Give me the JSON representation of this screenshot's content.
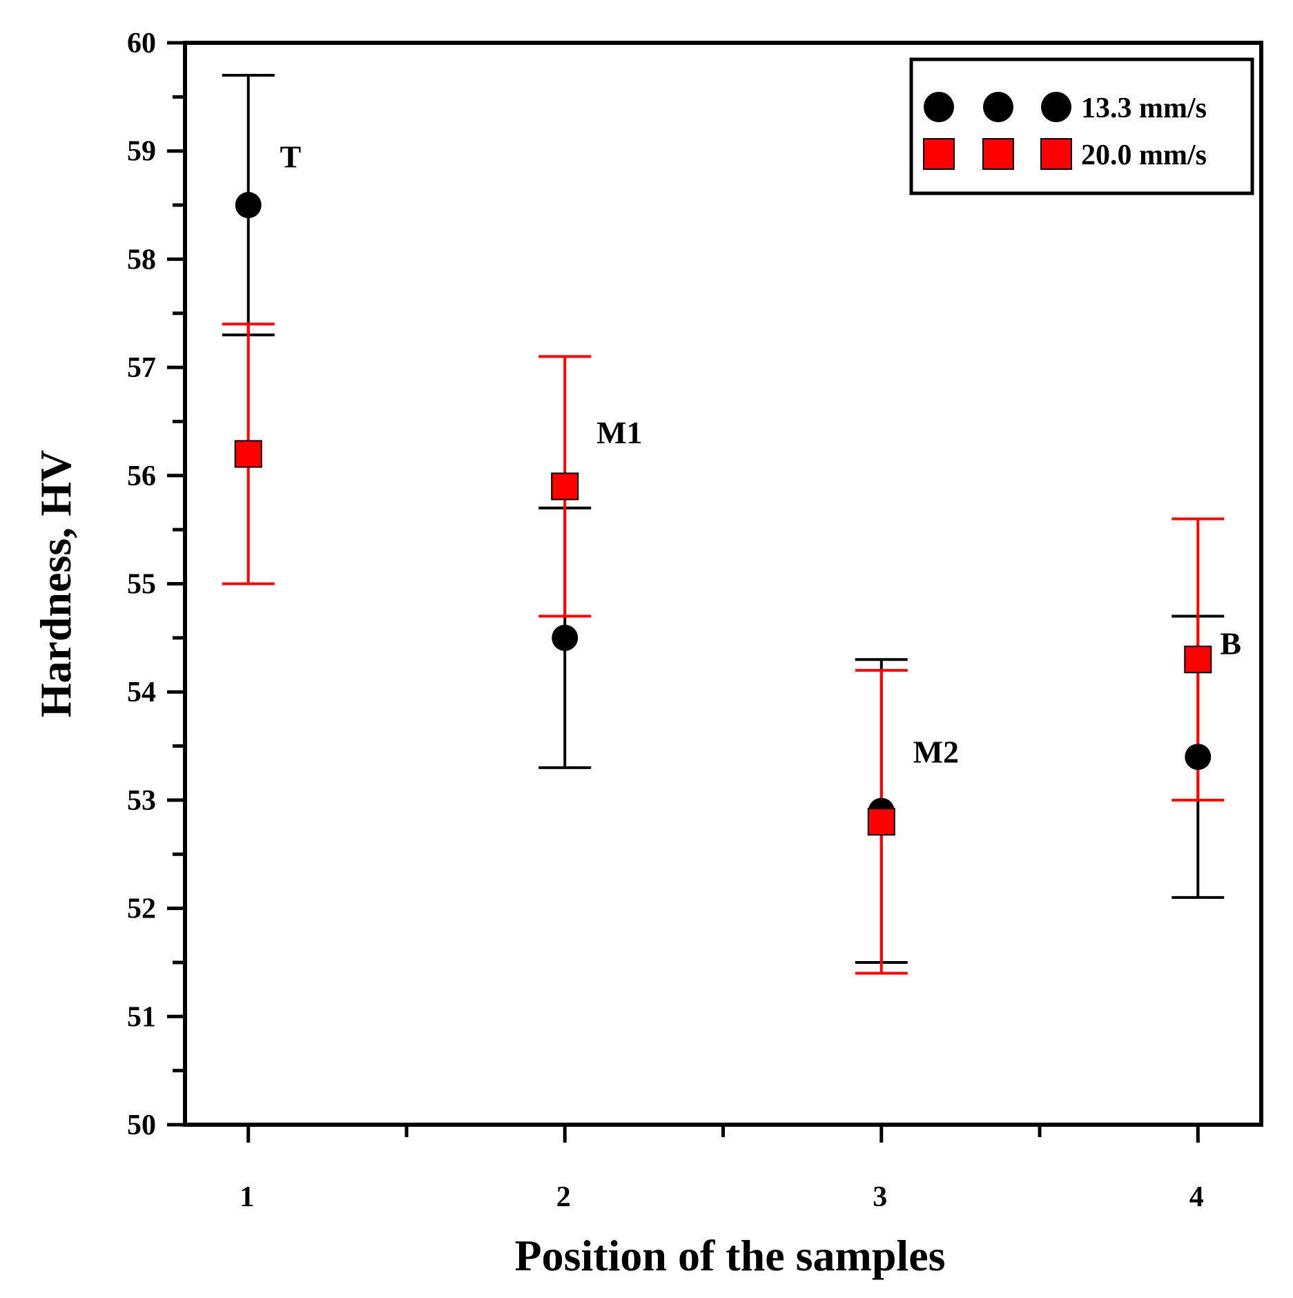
{
  "chart_data": {
    "type": "scatter",
    "title": "",
    "xlabel": "Position of the samples",
    "ylabel": "Hardness, HV",
    "xlim": [
      0.8,
      4.2
    ],
    "ylim": [
      50,
      60
    ],
    "x_ticks": [
      1,
      2,
      3,
      4
    ],
    "x_minor_ticks": [
      1.5,
      2.5,
      3.5
    ],
    "y_ticks": [
      50,
      51,
      52,
      53,
      54,
      55,
      56,
      57,
      58,
      59,
      60
    ],
    "y_minor_step": 0.5,
    "grid": false,
    "legend_position": "top-right",
    "series": [
      {
        "name": "13.3 mm/s",
        "marker": "circle",
        "color": "#000000",
        "x": [
          1,
          2,
          3,
          4
        ],
        "y": [
          58.5,
          54.5,
          52.9,
          53.4
        ],
        "err_low": [
          57.3,
          53.3,
          51.5,
          52.1
        ],
        "err_high": [
          59.7,
          55.7,
          54.3,
          54.7
        ]
      },
      {
        "name": "20.0 mm/s",
        "marker": "square",
        "color": "#ff0000",
        "x": [
          1,
          2,
          3,
          4
        ],
        "y": [
          56.2,
          55.9,
          52.8,
          54.3
        ],
        "err_low": [
          55.0,
          54.7,
          51.4,
          53.0
        ],
        "err_high": [
          57.4,
          57.1,
          54.2,
          55.6
        ]
      }
    ],
    "annotations": [
      {
        "text": "T",
        "x": 1.1,
        "y": 58.95
      },
      {
        "text": "M1",
        "x": 2.1,
        "y": 56.4
      },
      {
        "text": "M2",
        "x": 3.1,
        "y": 53.45
      },
      {
        "text": "B",
        "x": 4.07,
        "y": 54.45
      }
    ]
  }
}
